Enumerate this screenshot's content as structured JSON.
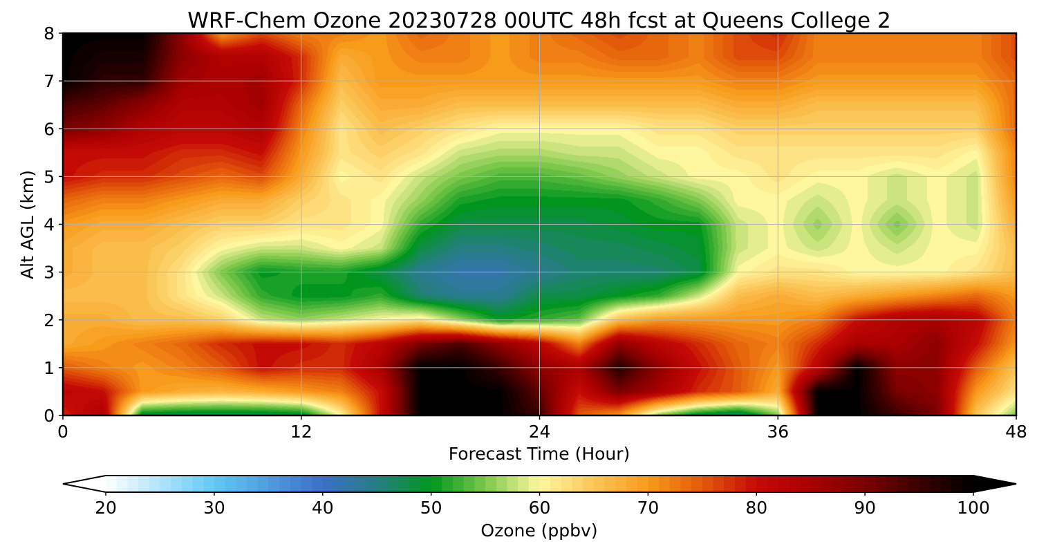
{
  "chart_data": {
    "type": "heatmap",
    "title": "WRF-Chem Ozone  20230728 00UTC 48h fcst at Queens College 2",
    "xlabel": "Forecast Time (Hour)",
    "ylabel": "Alt AGL (km)",
    "xlim": [
      0,
      48
    ],
    "ylim": [
      0,
      8
    ],
    "xticks": [
      "0",
      "12",
      "24",
      "36",
      "48"
    ],
    "yticks": [
      "0",
      "1",
      "2",
      "3",
      "4",
      "5",
      "6",
      "7",
      "8"
    ],
    "grid": true,
    "x_values": [
      0,
      2,
      4,
      6,
      8,
      10,
      12,
      14,
      16,
      18,
      20,
      22,
      24,
      26,
      28,
      30,
      32,
      34,
      36,
      38,
      40,
      42,
      44,
      46,
      48
    ],
    "y_values": [
      0,
      0.5,
      1,
      1.5,
      2,
      2.5,
      3,
      3.5,
      4,
      4.5,
      5,
      5.5,
      6,
      6.5,
      7,
      7.5,
      8
    ],
    "z_values": [
      [
        78,
        85,
        48,
        47,
        47,
        47,
        48,
        60,
        80,
        100,
        100,
        100,
        95,
        75,
        70,
        55,
        48,
        45,
        55,
        100,
        100,
        95,
        90,
        65,
        55
      ],
      [
        82,
        80,
        70,
        68,
        67,
        68,
        70,
        72,
        80,
        100,
        100,
        100,
        92,
        80,
        90,
        85,
        78,
        75,
        68,
        100,
        100,
        90,
        88,
        70,
        62
      ],
      [
        75,
        72,
        70,
        72,
        75,
        80,
        78,
        78,
        85,
        100,
        100,
        95,
        88,
        85,
        97,
        88,
        80,
        75,
        70,
        82,
        100,
        88,
        88,
        75,
        65
      ],
      [
        68,
        70,
        72,
        74,
        78,
        80,
        80,
        78,
        82,
        90,
        94,
        88,
        82,
        72,
        88,
        82,
        78,
        74,
        72,
        78,
        85,
        85,
        88,
        80,
        70
      ],
      [
        68,
        68,
        66,
        66,
        64,
        58,
        56,
        58,
        60,
        62,
        56,
        50,
        52,
        54,
        66,
        70,
        70,
        70,
        70,
        72,
        80,
        84,
        85,
        82,
        72
      ],
      [
        66,
        66,
        66,
        62,
        58,
        52,
        50,
        50,
        52,
        46,
        44,
        44,
        48,
        48,
        50,
        52,
        58,
        66,
        68,
        66,
        68,
        70,
        72,
        74,
        70
      ],
      [
        68,
        66,
        66,
        62,
        55,
        50,
        51,
        51,
        48,
        44,
        42,
        42,
        44,
        46,
        46,
        46,
        48,
        60,
        62,
        62,
        60,
        60,
        60,
        62,
        66
      ],
      [
        68,
        66,
        66,
        64,
        60,
        58,
        58,
        60,
        58,
        48,
        45,
        45,
        46,
        47,
        47,
        48,
        49,
        58,
        60,
        58,
        60,
        58,
        60,
        60,
        66
      ],
      [
        70,
        68,
        68,
        66,
        64,
        64,
        62,
        62,
        60,
        52,
        48,
        48,
        48,
        48,
        49,
        50,
        50,
        58,
        60,
        56,
        60,
        55,
        60,
        58,
        68
      ],
      [
        74,
        72,
        72,
        70,
        68,
        68,
        64,
        62,
        60,
        56,
        51,
        50,
        50,
        50,
        50,
        52,
        55,
        60,
        60,
        58,
        60,
        58,
        60,
        58,
        70
      ],
      [
        80,
        78,
        78,
        76,
        74,
        76,
        68,
        60,
        62,
        58,
        55,
        53,
        53,
        54,
        56,
        58,
        60,
        60,
        62,
        60,
        60,
        58,
        60,
        58,
        72
      ],
      [
        80,
        80,
        80,
        78,
        78,
        80,
        70,
        62,
        64,
        62,
        58,
        57,
        57,
        58,
        58,
        60,
        60,
        62,
        62,
        62,
        62,
        62,
        62,
        60,
        72
      ],
      [
        90,
        88,
        84,
        82,
        82,
        84,
        72,
        62,
        66,
        64,
        62,
        60,
        60,
        60,
        60,
        62,
        62,
        64,
        64,
        64,
        64,
        64,
        64,
        64,
        74
      ],
      [
        94,
        92,
        88,
        84,
        84,
        86,
        74,
        64,
        68,
        68,
        66,
        66,
        66,
        66,
        66,
        66,
        66,
        68,
        68,
        66,
        66,
        66,
        66,
        66,
        74
      ],
      [
        100,
        96,
        96,
        86,
        85,
        86,
        78,
        66,
        70,
        70,
        70,
        70,
        70,
        70,
        70,
        70,
        70,
        72,
        72,
        70,
        70,
        70,
        70,
        70,
        74
      ],
      [
        100,
        98,
        98,
        88,
        84,
        84,
        78,
        68,
        70,
        72,
        72,
        70,
        72,
        72,
        74,
        74,
        72,
        76,
        76,
        72,
        72,
        72,
        72,
        72,
        76
      ],
      [
        100,
        100,
        100,
        88,
        70,
        76,
        72,
        72,
        70,
        74,
        72,
        70,
        72,
        74,
        76,
        74,
        72,
        76,
        78,
        72,
        72,
        72,
        72,
        72,
        76
      ]
    ]
  },
  "colorbar": {
    "label": "Ozone  (ppbv)",
    "min": 20,
    "max": 100,
    "ticks": [
      "20",
      "30",
      "40",
      "50",
      "60",
      "70",
      "80",
      "90",
      "100"
    ],
    "extend": "both",
    "colors": [
      {
        "v": 20,
        "c": "#ffffff"
      },
      {
        "v": 30,
        "c": "#62c8f5"
      },
      {
        "v": 40,
        "c": "#3d6ec8"
      },
      {
        "v": 45,
        "c": "#267e82"
      },
      {
        "v": 50,
        "c": "#00961e"
      },
      {
        "v": 55,
        "c": "#7cc84a"
      },
      {
        "v": 60,
        "c": "#fff7a0"
      },
      {
        "v": 65,
        "c": "#fbc658"
      },
      {
        "v": 70,
        "c": "#f89a1a"
      },
      {
        "v": 75,
        "c": "#e35a0a"
      },
      {
        "v": 80,
        "c": "#c50a05"
      },
      {
        "v": 85,
        "c": "#aa0000"
      },
      {
        "v": 90,
        "c": "#7a0000"
      },
      {
        "v": 95,
        "c": "#3a0000"
      },
      {
        "v": 100,
        "c": "#000000"
      }
    ]
  }
}
